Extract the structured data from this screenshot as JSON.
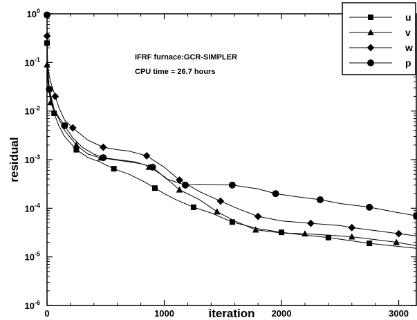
{
  "chart_data": {
    "type": "line",
    "title": "",
    "xlabel": "iteration",
    "ylabel": "residual",
    "xlim": [
      0,
      3150
    ],
    "ylim": [
      1e-06,
      1
    ],
    "yscale": "log",
    "grid": false,
    "legend_position": "top-right",
    "x_ticks": [
      0,
      1000,
      2000,
      3000
    ],
    "x_tick_labels": [
      "0",
      "1000",
      "2000",
      "3000"
    ],
    "y_ticks": [
      1,
      0.1,
      0.01,
      0.001,
      0.0001,
      1e-05,
      1e-06
    ],
    "y_tick_bases": [
      "10",
      "10",
      "10",
      "10",
      "10",
      "10",
      "10"
    ],
    "y_tick_exponents": [
      "0",
      "-1",
      "-2",
      "-3",
      "-4",
      "-5",
      "-6"
    ],
    "annotations": [
      "IFRF furnace:GCR-SIMPLER",
      "CPU time = 26.7 hours"
    ],
    "series": [
      {
        "name": "u",
        "marker": "square",
        "points": [
          [
            0,
            0.25
          ],
          [
            5,
            0.06
          ],
          [
            15,
            0.035
          ],
          [
            30,
            0.02
          ],
          [
            60,
            0.009
          ],
          [
            100,
            0.005
          ],
          [
            150,
            0.003
          ],
          [
            250,
            0.0016
          ],
          [
            350,
            0.0011
          ],
          [
            450,
            0.0009
          ],
          [
            570,
            0.00065
          ],
          [
            700,
            0.0005
          ],
          [
            830,
            0.00035
          ],
          [
            920,
            0.00026
          ],
          [
            1000,
            0.0002
          ],
          [
            1100,
            0.00015
          ],
          [
            1250,
            0.000105
          ],
          [
            1400,
            8e-05
          ],
          [
            1580,
            5.2e-05
          ],
          [
            1800,
            3.8e-05
          ],
          [
            2000,
            3.2e-05
          ],
          [
            2200,
            2.8e-05
          ],
          [
            2400,
            2.5e-05
          ],
          [
            2750,
            1.9e-05
          ],
          [
            3150,
            1.5e-05
          ]
        ],
        "marker_x": [
          0,
          60,
          250,
          570,
          920,
          1250,
          1580,
          2000,
          2400,
          2750
        ]
      },
      {
        "name": "v",
        "marker": "triangle",
        "points": [
          [
            0,
            0.09
          ],
          [
            5,
            0.045
          ],
          [
            15,
            0.03
          ],
          [
            30,
            0.015
          ],
          [
            60,
            0.01
          ],
          [
            100,
            0.007
          ],
          [
            150,
            0.004
          ],
          [
            250,
            0.002
          ],
          [
            350,
            0.0013
          ],
          [
            450,
            0.0011
          ],
          [
            570,
            0.001
          ],
          [
            700,
            0.0009
          ],
          [
            830,
            0.0008
          ],
          [
            920,
            0.0006
          ],
          [
            1000,
            0.00045
          ],
          [
            1130,
            0.00024
          ],
          [
            1300,
            0.00015
          ],
          [
            1450,
            8.5e-05
          ],
          [
            1600,
            5.5e-05
          ],
          [
            1780,
            3.6e-05
          ],
          [
            2000,
            3.1e-05
          ],
          [
            2200,
            3e-05
          ],
          [
            2600,
            2.6e-05
          ],
          [
            2980,
            2e-05
          ],
          [
            3150,
            1.7e-05
          ]
        ],
        "marker_x": [
          0,
          30,
          250,
          460,
          870,
          1130,
          1450,
          1780,
          2200,
          2600,
          2980
        ]
      },
      {
        "name": "w",
        "marker": "diamond",
        "points": [
          [
            0,
            0.35
          ],
          [
            5,
            0.1
          ],
          [
            15,
            0.06
          ],
          [
            30,
            0.04
          ],
          [
            70,
            0.02
          ],
          [
            100,
            0.012
          ],
          [
            150,
            0.0065
          ],
          [
            220,
            0.0045
          ],
          [
            350,
            0.0025
          ],
          [
            480,
            0.0018
          ],
          [
            600,
            0.0016
          ],
          [
            700,
            0.0015
          ],
          [
            850,
            0.0012
          ],
          [
            1000,
            0.0007
          ],
          [
            1130,
            0.00038
          ],
          [
            1300,
            0.00022
          ],
          [
            1480,
            0.00014
          ],
          [
            1620,
            0.0001
          ],
          [
            1800,
            6.8e-05
          ],
          [
            2000,
            5.5e-05
          ],
          [
            2250,
            4.9e-05
          ],
          [
            2500,
            4.4e-05
          ],
          [
            2600,
            4e-05
          ],
          [
            3000,
            3e-05
          ],
          [
            3150,
            2.7e-05
          ]
        ],
        "marker_x": [
          0,
          70,
          220,
          480,
          850,
          1130,
          1480,
          1800,
          2250,
          2600,
          3000
        ]
      },
      {
        "name": "p",
        "marker": "circle",
        "points": [
          [
            0,
            0.95
          ],
          [
            2,
            0.2
          ],
          [
            5,
            0.085
          ],
          [
            20,
            0.028
          ],
          [
            60,
            0.011
          ],
          [
            100,
            0.0075
          ],
          [
            150,
            0.005
          ],
          [
            220,
            0.0028
          ],
          [
            300,
            0.0018
          ],
          [
            400,
            0.0013
          ],
          [
            480,
            0.0011
          ],
          [
            600,
            0.001
          ],
          [
            750,
            0.0009
          ],
          [
            900,
            0.0007
          ],
          [
            1020,
            0.0004
          ],
          [
            1180,
            0.0003
          ],
          [
            1300,
            0.00031
          ],
          [
            1580,
            0.0003
          ],
          [
            1800,
            0.00025
          ],
          [
            1950,
            0.0002
          ],
          [
            2150,
            0.00017
          ],
          [
            2330,
            0.00015
          ],
          [
            2500,
            0.000125
          ],
          [
            2750,
            0.000105
          ],
          [
            2950,
            8.5e-05
          ],
          [
            3150,
            7e-05
          ]
        ],
        "marker_x": [
          0,
          20,
          150,
          480,
          900,
          1180,
          1580,
          1950,
          2330,
          2750,
          3150
        ]
      }
    ]
  }
}
